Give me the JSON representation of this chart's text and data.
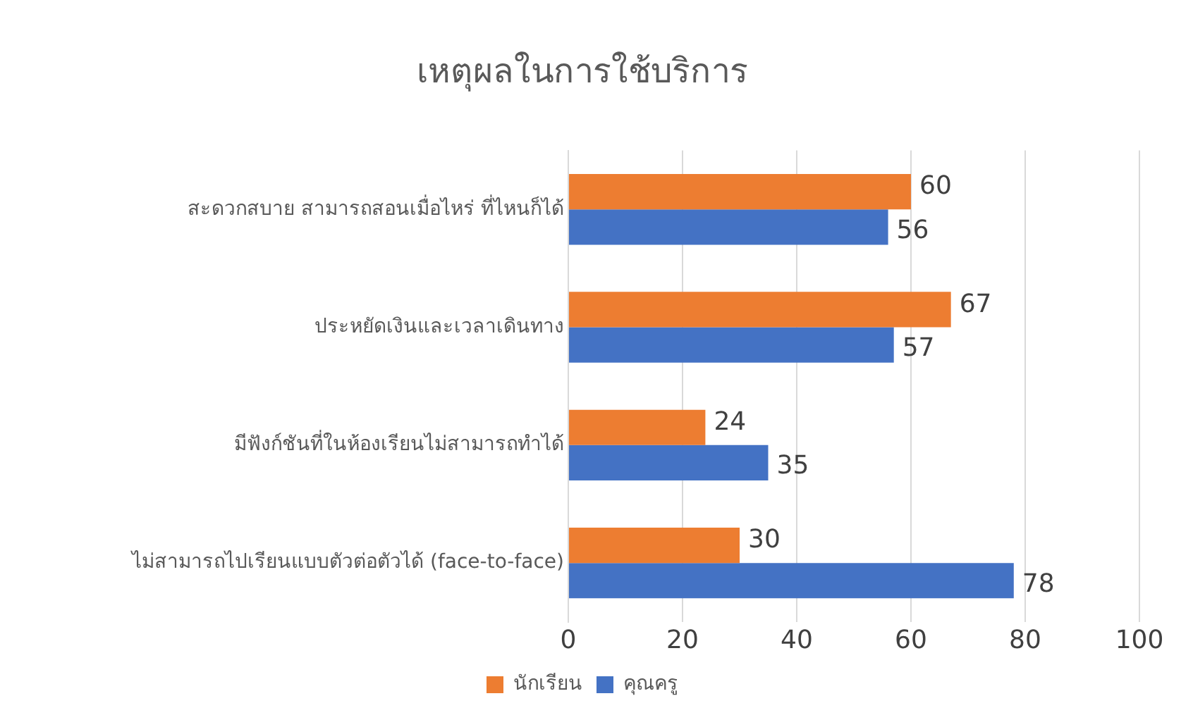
{
  "chart_data": {
    "type": "bar",
    "orientation": "horizontal",
    "title": "เหตุผลในการใช้บริการ",
    "categories": [
      "สะดวกสบาย สามารถสอนเมื่อไหร่ ที่ไหนก็ได้",
      "ประหยัดเงินและเวลาเดินทาง",
      "มีฟังก์ชันที่ในห้องเรียนไม่สามารถทำได้",
      "ไม่สามารถไปเรียนแบบตัวต่อตัวได้ (face-to-face)"
    ],
    "series": [
      {
        "name": "นักเรียน",
        "color": "#ed7d31",
        "values": [
          60,
          67,
          24,
          30
        ]
      },
      {
        "name": "คุณครู",
        "color": "#4472c4",
        "values": [
          56,
          57,
          35,
          78
        ]
      }
    ],
    "xlim": [
      0,
      100
    ],
    "xticks": [
      0,
      20,
      40,
      60,
      80,
      100
    ],
    "grid": "x",
    "legend": "bottom",
    "data_labels": true
  }
}
